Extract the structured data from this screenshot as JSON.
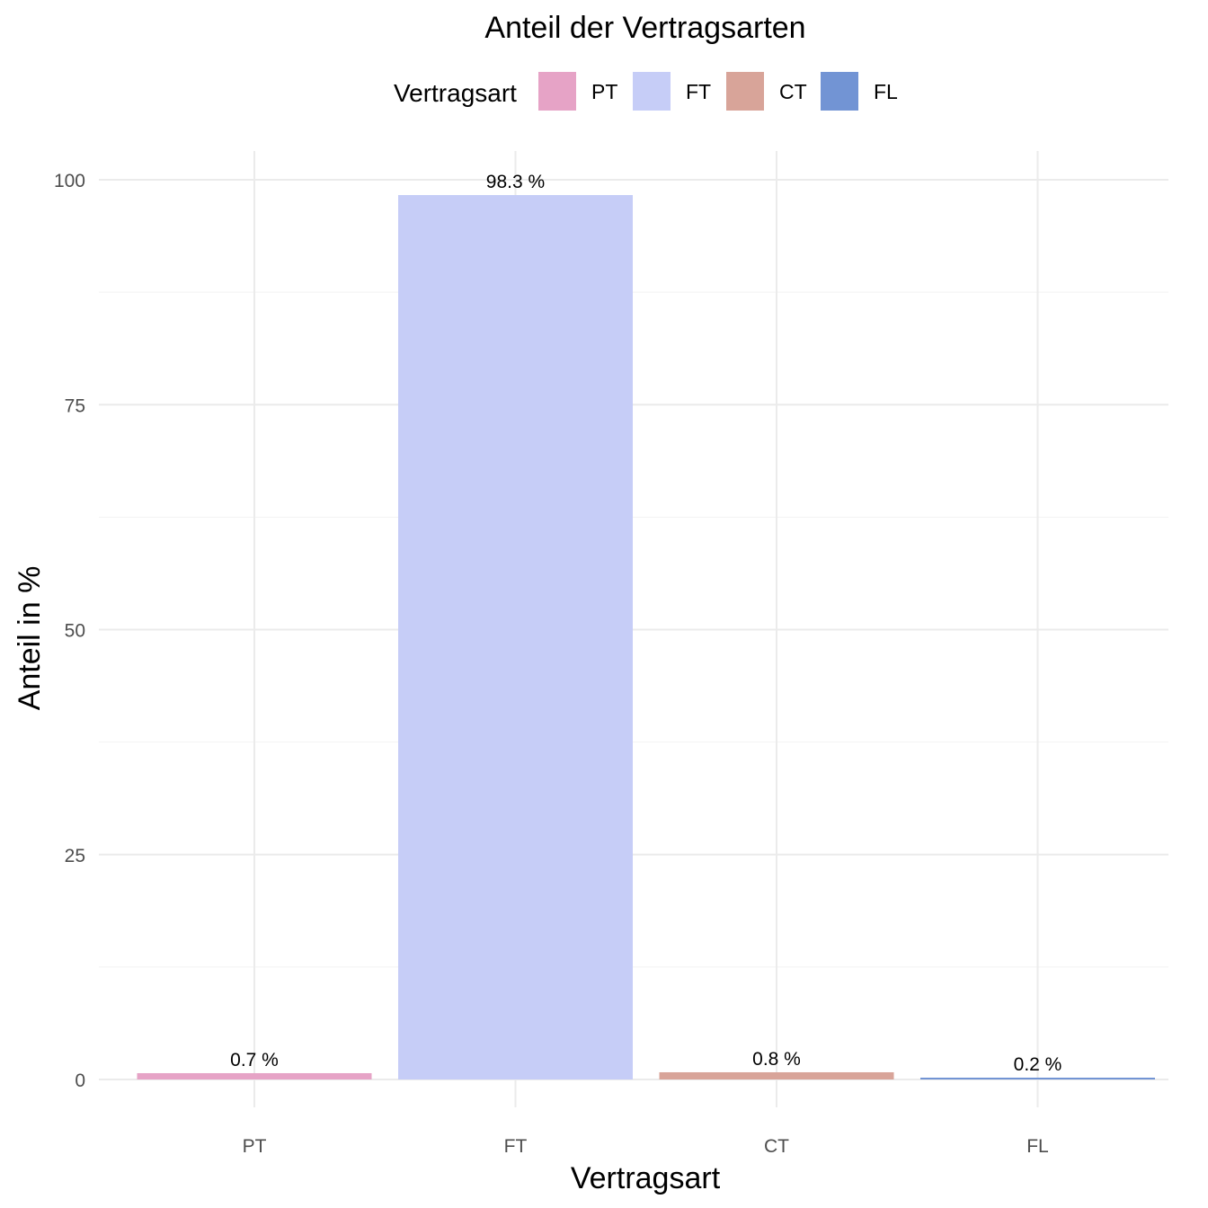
{
  "chart_data": {
    "type": "bar",
    "title": "Anteil der Vertragsarten",
    "xlabel": "Vertragsart",
    "ylabel": "Anteil in %",
    "categories": [
      "PT",
      "FT",
      "CT",
      "FL"
    ],
    "values": [
      0.7,
      98.3,
      0.8,
      0.2
    ],
    "data_labels": [
      "0.7 %",
      "98.3 %",
      "0.8 %",
      "0.2 %"
    ],
    "colors": [
      "#e6a3c6",
      "#c6cdf7",
      "#d8a499",
      "#7294d4"
    ],
    "ylim": [
      0,
      100
    ],
    "yticks": [
      0,
      25,
      50,
      75,
      100
    ],
    "grid": true,
    "legend": {
      "title": "Vertragsart",
      "placement": "top",
      "entries": [
        "PT",
        "FT",
        "CT",
        "FL"
      ]
    }
  }
}
